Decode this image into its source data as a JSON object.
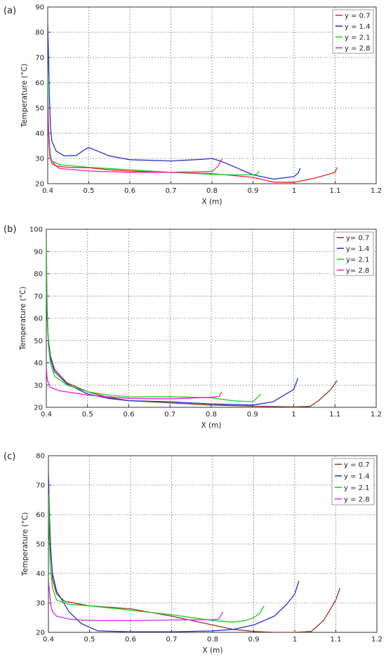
{
  "chart_data": [
    {
      "type": "line",
      "panel_label": "(a)",
      "xlabel": "X (m)",
      "ylabel": "Temperature (°C)",
      "xlim": [
        0.4,
        1.2
      ],
      "ylim": [
        20,
        90
      ],
      "xticks": [
        0.4,
        0.5,
        0.6,
        0.7,
        0.8,
        0.9,
        1,
        1.1,
        1.2
      ],
      "yticks": [
        20,
        30,
        40,
        50,
        60,
        70,
        80,
        90
      ],
      "grid": true,
      "legend_position": "top-right",
      "series": [
        {
          "name": "y = 0.7",
          "color": "#ee2222",
          "points": [
            [
              0.401,
              47
            ],
            [
              0.403,
              36
            ],
            [
              0.408,
              29.5
            ],
            [
              0.42,
              27
            ],
            [
              0.45,
              26.5
            ],
            [
              0.5,
              26.3
            ],
            [
              0.55,
              25.5
            ],
            [
              0.6,
              25
            ],
            [
              0.7,
              24.5
            ],
            [
              0.8,
              24
            ],
            [
              0.9,
              22.5
            ],
            [
              0.95,
              20.6
            ],
            [
              1.0,
              20.5
            ],
            [
              1.05,
              22.2
            ],
            [
              1.09,
              24
            ],
            [
              1.1,
              24.5
            ],
            [
              1.105,
              26.5
            ]
          ]
        },
        {
          "name": "y = 1.4",
          "color": "#2233cc",
          "points": [
            [
              0.4,
              83
            ],
            [
              0.402,
              70
            ],
            [
              0.404,
              55
            ],
            [
              0.407,
              42
            ],
            [
              0.41,
              37
            ],
            [
              0.42,
              33
            ],
            [
              0.44,
              31
            ],
            [
              0.47,
              31.2
            ],
            [
              0.49,
              33.5
            ],
            [
              0.5,
              34.3
            ],
            [
              0.52,
              33
            ],
            [
              0.55,
              31
            ],
            [
              0.6,
              29.5
            ],
            [
              0.7,
              29
            ],
            [
              0.78,
              29.7
            ],
            [
              0.8,
              30
            ],
            [
              0.82,
              29
            ],
            [
              0.85,
              27
            ],
            [
              0.9,
              23.5
            ],
            [
              0.95,
              21.8
            ],
            [
              1.0,
              22.8
            ],
            [
              1.01,
              24.2
            ],
            [
              1.015,
              26.2
            ]
          ]
        },
        {
          "name": "y = 2.1",
          "color": "#22cc22",
          "points": [
            [
              0.4,
              63
            ],
            [
              0.402,
              42
            ],
            [
              0.406,
              32
            ],
            [
              0.41,
              29
            ],
            [
              0.43,
              27.5
            ],
            [
              0.5,
              26.5
            ],
            [
              0.6,
              25.5
            ],
            [
              0.7,
              24.5
            ],
            [
              0.8,
              23.7
            ],
            [
              0.85,
              23.5
            ],
            [
              0.9,
              23.5
            ],
            [
              0.91,
              23.8
            ],
            [
              0.915,
              25
            ]
          ]
        },
        {
          "name": "y = 2.8",
          "color": "#ee22aa",
          "points": [
            [
              0.4,
              53
            ],
            [
              0.402,
              40
            ],
            [
              0.405,
              31
            ],
            [
              0.41,
              28
            ],
            [
              0.43,
              26
            ],
            [
              0.5,
              25
            ],
            [
              0.6,
              24.5
            ],
            [
              0.7,
              24.5
            ],
            [
              0.75,
              24.7
            ],
            [
              0.8,
              24.8
            ],
            [
              0.815,
              27
            ],
            [
              0.825,
              30
            ]
          ]
        }
      ]
    },
    {
      "type": "line",
      "panel_label": "(b)",
      "xlabel": "X (m)",
      "ylabel": "Temperature (°C)",
      "xlim": [
        0.4,
        1.2
      ],
      "ylim": [
        20,
        100
      ],
      "xticks": [
        0.4,
        0.5,
        0.6,
        0.7,
        0.8,
        0.9,
        1,
        1.1,
        1.2
      ],
      "yticks": [
        20,
        30,
        40,
        50,
        60,
        70,
        80,
        90,
        100
      ],
      "grid": true,
      "legend_position": "top-right",
      "series": [
        {
          "name": "y= 0.7",
          "color": "#993322",
          "points": [
            [
              0.4,
              77
            ],
            [
              0.402,
              60
            ],
            [
              0.405,
              50
            ],
            [
              0.41,
              43
            ],
            [
              0.42,
              37
            ],
            [
              0.45,
              31
            ],
            [
              0.5,
              27
            ],
            [
              0.55,
              24.5
            ],
            [
              0.6,
              23
            ],
            [
              0.7,
              22
            ],
            [
              0.8,
              21
            ],
            [
              0.9,
              20.5
            ],
            [
              1.0,
              20.2
            ],
            [
              1.04,
              20.4
            ],
            [
              1.06,
              23
            ],
            [
              1.09,
              28
            ],
            [
              1.105,
              32
            ]
          ]
        },
        {
          "name": "y= 1.4",
          "color": "#2233cc",
          "points": [
            [
              0.4,
              83
            ],
            [
              0.402,
              62
            ],
            [
              0.405,
              50
            ],
            [
              0.41,
              42
            ],
            [
              0.42,
              36
            ],
            [
              0.45,
              30.5
            ],
            [
              0.5,
              26
            ],
            [
              0.55,
              24
            ],
            [
              0.6,
              23
            ],
            [
              0.7,
              22.5
            ],
            [
              0.8,
              21.5
            ],
            [
              0.9,
              21
            ],
            [
              0.95,
              22.5
            ],
            [
              1.0,
              28
            ],
            [
              1.01,
              33
            ]
          ]
        },
        {
          "name": "y= 2.1",
          "color": "#22cc22",
          "points": [
            [
              0.4,
              96
            ],
            [
              0.402,
              65
            ],
            [
              0.405,
              48
            ],
            [
              0.41,
              40
            ],
            [
              0.42,
              34
            ],
            [
              0.45,
              30
            ],
            [
              0.5,
              27
            ],
            [
              0.55,
              25.5
            ],
            [
              0.6,
              24.7
            ],
            [
              0.7,
              24.8
            ],
            [
              0.8,
              24.3
            ],
            [
              0.85,
              23
            ],
            [
              0.9,
              22.5
            ],
            [
              0.91,
              24
            ],
            [
              0.92,
              26
            ]
          ]
        },
        {
          "name": "y= 2.8",
          "color": "#ee22cc",
          "points": [
            [
              0.4,
              38
            ],
            [
              0.402,
              33
            ],
            [
              0.405,
              31
            ],
            [
              0.41,
              29
            ],
            [
              0.43,
              27.5
            ],
            [
              0.5,
              25.5
            ],
            [
              0.6,
              24
            ],
            [
              0.7,
              23.8
            ],
            [
              0.8,
              24.5
            ],
            [
              0.82,
              25
            ],
            [
              0.825,
              27
            ]
          ]
        }
      ]
    },
    {
      "type": "line",
      "panel_label": "(c)",
      "xlabel": "X (m)",
      "ylabel": "Temperature (°C)",
      "xlim": [
        0.4,
        1.2
      ],
      "ylim": [
        20,
        80
      ],
      "xticks": [
        0.4,
        0.5,
        0.6,
        0.7,
        0.8,
        0.9,
        1,
        1.1,
        1.2
      ],
      "yticks": [
        20,
        30,
        40,
        50,
        60,
        70,
        80
      ],
      "grid": true,
      "legend_position": "top-right",
      "series": [
        {
          "name": "y = 0.7",
          "color": "#993322",
          "points": [
            [
              0.4,
              75
            ],
            [
              0.402,
              62
            ],
            [
              0.405,
              50
            ],
            [
              0.408,
              43
            ],
            [
              0.41,
              38
            ],
            [
              0.42,
              33
            ],
            [
              0.44,
              30.5
            ],
            [
              0.5,
              29
            ],
            [
              0.6,
              28
            ],
            [
              0.7,
              25.5
            ],
            [
              0.8,
              22.5
            ],
            [
              0.85,
              21
            ],
            [
              0.9,
              20.3
            ],
            [
              0.95,
              20
            ],
            [
              1.0,
              20
            ],
            [
              1.04,
              20.3
            ],
            [
              1.07,
              24
            ],
            [
              1.1,
              31
            ],
            [
              1.11,
              35
            ]
          ]
        },
        {
          "name": "y = 1.4",
          "color": "#2233cc",
          "points": [
            [
              0.4,
              72
            ],
            [
              0.402,
              58
            ],
            [
              0.405,
              48
            ],
            [
              0.41,
              40
            ],
            [
              0.42,
              34
            ],
            [
              0.45,
              27
            ],
            [
              0.48,
              23
            ],
            [
              0.52,
              20.5
            ],
            [
              0.6,
              20.2
            ],
            [
              0.7,
              20.2
            ],
            [
              0.8,
              20.5
            ],
            [
              0.85,
              21
            ],
            [
              0.9,
              22.5
            ],
            [
              0.95,
              25.5
            ],
            [
              0.98,
              29.5
            ],
            [
              1.0,
              33
            ],
            [
              1.01,
              37.5
            ]
          ]
        },
        {
          "name": "y = 2.1",
          "color": "#22cc22",
          "points": [
            [
              0.4,
              67
            ],
            [
              0.402,
              52
            ],
            [
              0.405,
              42
            ],
            [
              0.41,
              35
            ],
            [
              0.42,
              31
            ],
            [
              0.45,
              29.5
            ],
            [
              0.5,
              29
            ],
            [
              0.6,
              27.5
            ],
            [
              0.7,
              26
            ],
            [
              0.8,
              24
            ],
            [
              0.85,
              23.5
            ],
            [
              0.88,
              24
            ],
            [
              0.9,
              25
            ],
            [
              0.915,
              26.5
            ],
            [
              0.925,
              29
            ]
          ]
        },
        {
          "name": "y = 2.8",
          "color": "#cc33ee",
          "points": [
            [
              0.4,
              38
            ],
            [
              0.403,
              33
            ],
            [
              0.406,
              29
            ],
            [
              0.41,
              27
            ],
            [
              0.42,
              25.5
            ],
            [
              0.45,
              24.5
            ],
            [
              0.5,
              24
            ],
            [
              0.6,
              24
            ],
            [
              0.7,
              24.2
            ],
            [
              0.8,
              24.3
            ],
            [
              0.815,
              24.5
            ],
            [
              0.825,
              27
            ]
          ]
        }
      ]
    }
  ]
}
